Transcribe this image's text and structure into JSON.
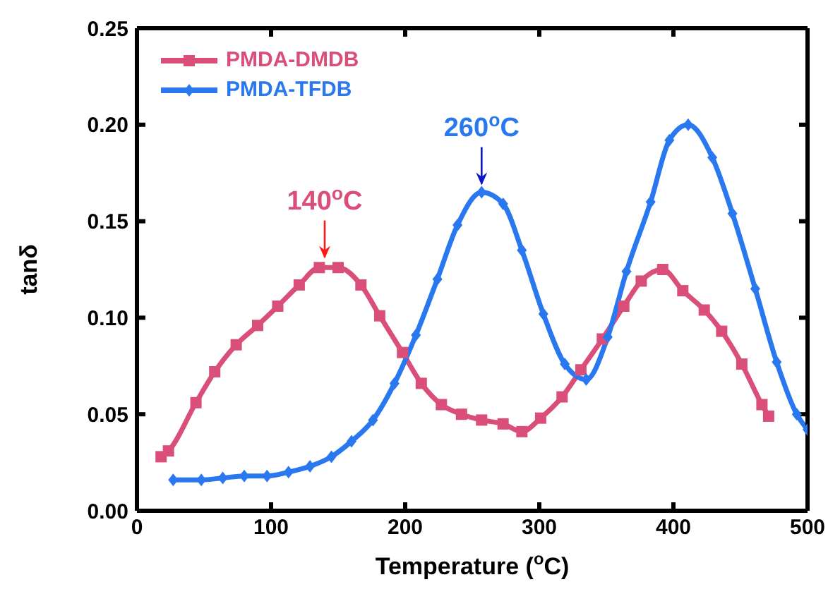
{
  "chart_data": {
    "type": "line",
    "xlabel": "Temperature ($^{o}$C)",
    "ylabel": "tanδ",
    "xlim": [
      0,
      500
    ],
    "xticks": [
      0,
      100,
      200,
      300,
      400,
      500
    ],
    "ylim": [
      0,
      0.25
    ],
    "yticks": [
      {
        "value": 0,
        "label": "0.00"
      },
      {
        "value": 0.05,
        "label": "0.05"
      },
      {
        "value": 0.1,
        "label": "0.10"
      },
      {
        "value": 0.15,
        "label": "0.15"
      },
      {
        "value": 0.2,
        "label": "0.20"
      },
      {
        "value": 0.25,
        "label": "0.25"
      }
    ],
    "legend": "top left",
    "grid": false,
    "line_style": "solid",
    "series": [
      {
        "name": "PMDA-DMDB",
        "color": "#d94f7a",
        "marker": "square",
        "x": [
          18,
          23.5,
          44,
          58,
          74,
          90,
          105,
          121,
          136,
          150,
          167,
          181,
          198,
          212,
          227,
          242,
          257,
          273,
          287,
          301,
          317,
          331,
          347,
          363,
          376,
          392,
          407,
          423,
          436,
          451,
          466,
          471
        ],
        "values": [
          0.028,
          0.031,
          0.056,
          0.072,
          0.086,
          0.096,
          0.106,
          0.117,
          0.126,
          0.126,
          0.117,
          0.101,
          0.082,
          0.066,
          0.055,
          0.05,
          0.047,
          0.045,
          0.041,
          0.048,
          0.059,
          0.073,
          0.089,
          0.106,
          0.119,
          0.125,
          0.114,
          0.104,
          0.093,
          0.076,
          0.055,
          0.049
        ]
      },
      {
        "name": "PMDA-TFDB",
        "color": "#2a78f0",
        "marker": "diamond",
        "x": [
          27,
          48,
          64,
          80,
          97,
          113,
          129,
          145,
          160,
          176,
          192,
          208,
          224,
          239,
          257,
          273,
          287,
          303,
          319,
          335,
          351,
          365,
          383,
          397,
          411,
          429,
          444,
          461,
          477,
          492,
          500
        ],
        "values": [
          0.016,
          0.016,
          0.017,
          0.018,
          0.018,
          0.02,
          0.023,
          0.028,
          0.036,
          0.047,
          0.066,
          0.091,
          0.12,
          0.148,
          0.165,
          0.159,
          0.135,
          0.102,
          0.076,
          0.068,
          0.09,
          0.124,
          0.16,
          0.192,
          0.2,
          0.183,
          0.154,
          0.115,
          0.077,
          0.05,
          0.042
        ]
      }
    ],
    "annotations": [
      {
        "text": "140$^{o}$C",
        "x": 140,
        "y": 0.127
      },
      {
        "text": "260$^{o}$C",
        "x": 257,
        "y": 0.165
      }
    ]
  }
}
